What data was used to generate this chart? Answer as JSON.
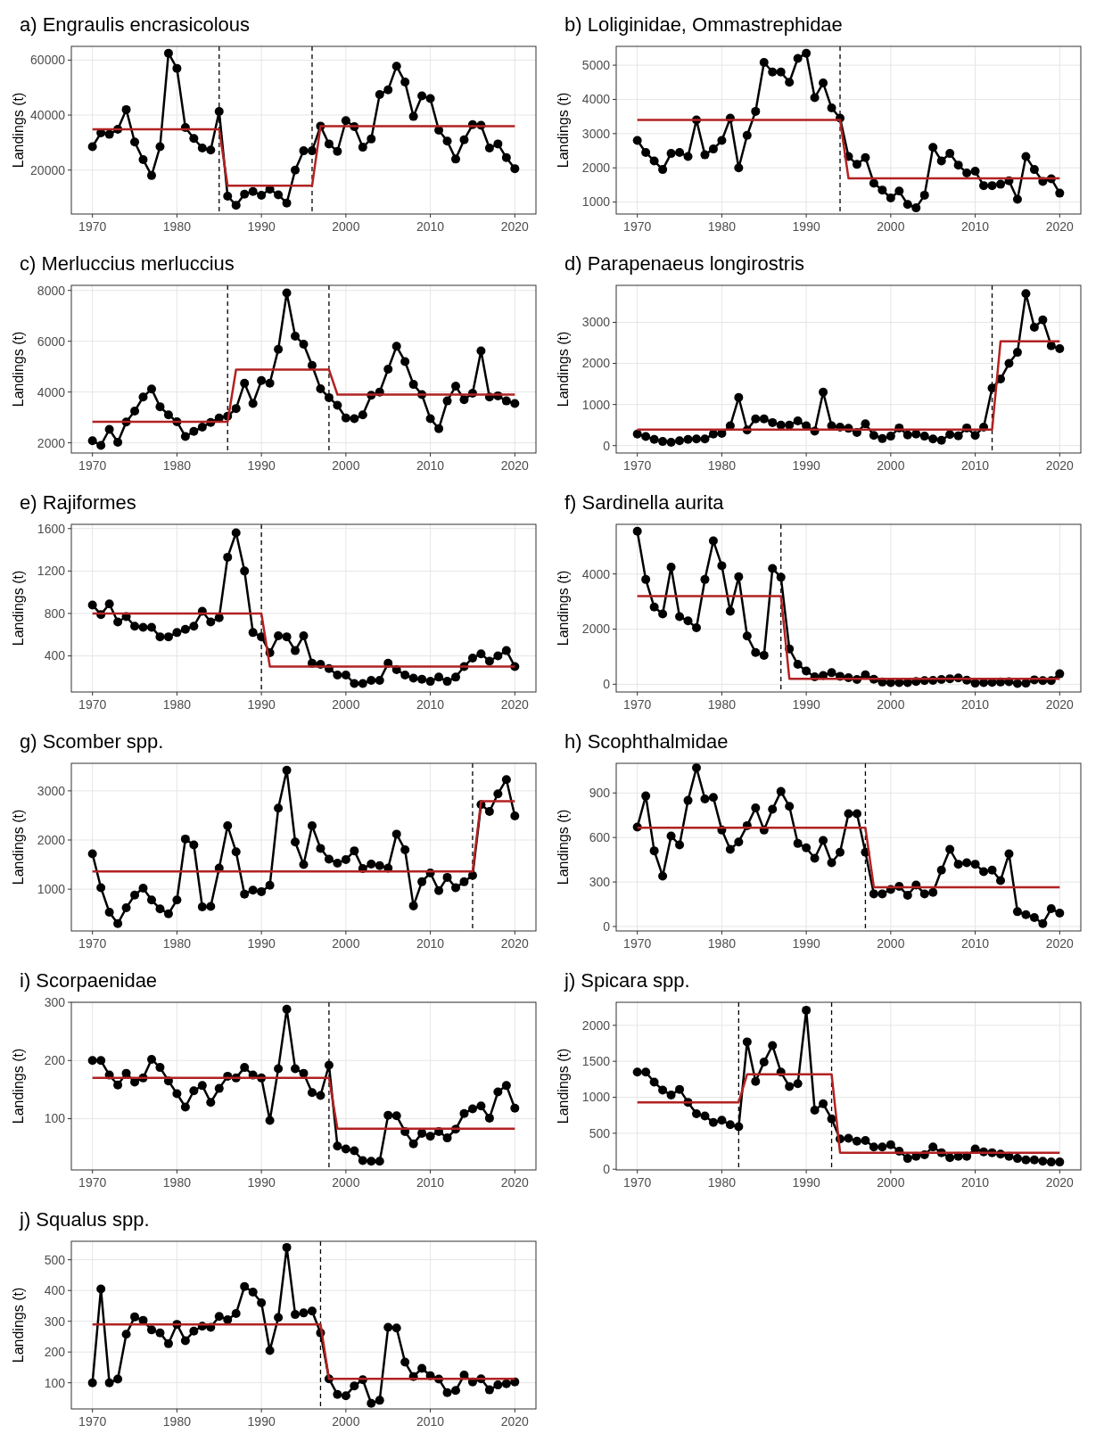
{
  "chart_data": [
    {
      "type": "line",
      "title": "a) Engraulis encrasicolous",
      "ylabel": "Landings (t)",
      "x": [
        1970,
        1971,
        1972,
        1973,
        1974,
        1975,
        1976,
        1977,
        1978,
        1979,
        1980,
        1981,
        1982,
        1983,
        1984,
        1985,
        1986,
        1987,
        1988,
        1989,
        1990,
        1991,
        1992,
        1993,
        1994,
        1995,
        1996,
        1997,
        1998,
        1999,
        2000,
        2001,
        2002,
        2003,
        2004,
        2005,
        2006,
        2007,
        2008,
        2009,
        2010,
        2011,
        2012,
        2013,
        2014,
        2015,
        2016,
        2017,
        2018,
        2019,
        2020
      ],
      "xlim": [
        1967.5,
        2022.5
      ],
      "xticks": [
        1970,
        1980,
        1990,
        2000,
        2010,
        2020
      ],
      "ylim": [
        4000,
        65000
      ],
      "yticks": [
        20000,
        40000,
        60000
      ],
      "grid": true,
      "marker": "circle",
      "series": [
        {
          "color": "#000000",
          "values": [
            28500,
            33500,
            33000,
            34800,
            42000,
            30200,
            23800,
            18000,
            28500,
            62500,
            57000,
            35500,
            31500,
            28000,
            27300,
            41300,
            10500,
            7200,
            11200,
            12200,
            10800,
            13000,
            11000,
            8000,
            20000,
            27000,
            27000,
            36000,
            29500,
            26800,
            38000,
            35800,
            28300,
            31300,
            47500,
            49200,
            57800,
            52000,
            39500,
            47000,
            46000,
            34500,
            30500,
            24000,
            31000,
            36500,
            36300,
            28000,
            29500,
            24500,
            20500
          ]
        },
        {
          "type": "line",
          "marker": "none",
          "color": "#b22222",
          "x": [
            1970,
            1985,
            1986,
            1996,
            1997,
            2020
          ],
          "values": [
            34800,
            34800,
            14300,
            14300,
            36000,
            36000
          ]
        }
      ],
      "ref_lines": [
        {
          "axis": "x",
          "value": 1985,
          "color": "#000000",
          "line_style": "dashed"
        },
        {
          "axis": "x",
          "value": 1996,
          "color": "#000000",
          "line_style": "dashed"
        }
      ]
    },
    {
      "type": "line",
      "title": "b) Loliginidae, Ommastrephidae",
      "x": [
        1970,
        1971,
        1972,
        1973,
        1974,
        1975,
        1976,
        1977,
        1978,
        1979,
        1980,
        1981,
        1982,
        1983,
        1984,
        1985,
        1986,
        1987,
        1988,
        1989,
        1990,
        1991,
        1992,
        1993,
        1994,
        1995,
        1996,
        1997,
        1998,
        1999,
        2000,
        2001,
        2002,
        2003,
        2004,
        2005,
        2006,
        2007,
        2008,
        2009,
        2010,
        2011,
        2012,
        2013,
        2014,
        2015,
        2016,
        2017,
        2018,
        2019,
        2020
      ],
      "ylabel": "Landings (t)",
      "xlim": [
        1967.5,
        2022.5
      ],
      "xticks": [
        1970,
        1980,
        1990,
        2000,
        2010,
        2020
      ],
      "ylim": [
        650,
        5550
      ],
      "yticks": [
        1000,
        2000,
        3000,
        4000,
        5000
      ],
      "grid": true,
      "marker": "circle",
      "series": [
        {
          "color": "#000000",
          "values": [
            2800,
            2450,
            2200,
            1950,
            2420,
            2450,
            2330,
            3400,
            2380,
            2550,
            2800,
            3450,
            2000,
            2950,
            3650,
            5080,
            4800,
            4800,
            4500,
            5200,
            5350,
            4050,
            4480,
            3750,
            3450,
            2330,
            2100,
            2300,
            1550,
            1350,
            1120,
            1320,
            930,
            830,
            1200,
            2600,
            2200,
            2420,
            2080,
            1850,
            1900,
            1480,
            1480,
            1520,
            1620,
            1080,
            2330,
            1950,
            1600,
            1680,
            1260
          ]
        },
        {
          "type": "line",
          "marker": "none",
          "color": "#b22222",
          "x": [
            1970,
            1994,
            1995,
            2020
          ],
          "values": [
            3400,
            3400,
            1690,
            1690
          ]
        }
      ],
      "ref_lines": [
        {
          "axis": "x",
          "value": 1994,
          "color": "#000000",
          "line_style": "dashed"
        }
      ]
    },
    {
      "type": "line",
      "title": "c) Merluccius merluccius",
      "x": [
        1970,
        1971,
        1972,
        1973,
        1974,
        1975,
        1976,
        1977,
        1978,
        1979,
        1980,
        1981,
        1982,
        1983,
        1984,
        1985,
        1986,
        1987,
        1988,
        1989,
        1990,
        1991,
        1992,
        1993,
        1994,
        1995,
        1996,
        1997,
        1998,
        1999,
        2000,
        2001,
        2002,
        2003,
        2004,
        2005,
        2006,
        2007,
        2008,
        2009,
        2010,
        2011,
        2012,
        2013,
        2014,
        2015,
        2016,
        2017,
        2018,
        2019,
        2020
      ],
      "ylabel": "Landings (t)",
      "xlim": [
        1967.5,
        2022.5
      ],
      "xticks": [
        1970,
        1980,
        1990,
        2000,
        2010,
        2020
      ],
      "ylim": [
        1600,
        8200
      ],
      "yticks": [
        2000,
        4000,
        6000,
        8000
      ],
      "grid": true,
      "marker": "circle",
      "series": [
        {
          "color": "#000000",
          "values": [
            2080,
            1900,
            2530,
            2020,
            2820,
            3250,
            3800,
            4120,
            3420,
            3100,
            2830,
            2250,
            2450,
            2620,
            2800,
            2980,
            3050,
            3350,
            4350,
            3550,
            4450,
            4350,
            5680,
            7900,
            6200,
            5880,
            5050,
            4130,
            3780,
            3480,
            2980,
            2950,
            3100,
            3870,
            4000,
            4900,
            5800,
            5200,
            4300,
            3900,
            2950,
            2560,
            3650,
            4230,
            3700,
            3950,
            5620,
            3800,
            3850,
            3650,
            3550
          ]
        },
        {
          "type": "line",
          "marker": "none",
          "color": "#b22222",
          "x": [
            1970,
            1986,
            1987,
            1998,
            1999,
            2020
          ],
          "values": [
            2830,
            2830,
            4880,
            4880,
            3900,
            3900
          ]
        }
      ],
      "ref_lines": [
        {
          "axis": "x",
          "value": 1986,
          "color": "#000000",
          "line_style": "dashed"
        },
        {
          "axis": "x",
          "value": 1998,
          "color": "#000000",
          "line_style": "dashed"
        }
      ]
    },
    {
      "type": "line",
      "title": "d) Parapenaeus longirostris",
      "x": [
        1970,
        1971,
        1972,
        1973,
        1974,
        1975,
        1976,
        1977,
        1978,
        1979,
        1980,
        1981,
        1982,
        1983,
        1984,
        1985,
        1986,
        1987,
        1988,
        1989,
        1990,
        1991,
        1992,
        1993,
        1994,
        1995,
        1996,
        1997,
        1998,
        1999,
        2000,
        2001,
        2002,
        2003,
        2004,
        2005,
        2006,
        2007,
        2008,
        2009,
        2010,
        2011,
        2012,
        2013,
        2014,
        2015,
        2016,
        2017,
        2018,
        2019,
        2020
      ],
      "ylabel": "Landings (t)",
      "xlim": [
        1967.5,
        2022.5
      ],
      "xticks": [
        1970,
        1980,
        1990,
        2000,
        2010,
        2020
      ],
      "ylim": [
        -180,
        3900
      ],
      "yticks": [
        0,
        1000,
        2000,
        3000
      ],
      "grid": true,
      "marker": "circle",
      "series": [
        {
          "color": "#000000",
          "values": [
            280,
            220,
            150,
            100,
            80,
            120,
            150,
            160,
            160,
            280,
            300,
            480,
            1170,
            380,
            650,
            650,
            560,
            500,
            500,
            600,
            480,
            350,
            1300,
            480,
            450,
            420,
            320,
            530,
            250,
            170,
            230,
            430,
            260,
            280,
            230,
            160,
            130,
            270,
            240,
            430,
            250,
            450,
            1400,
            1620,
            2000,
            2270,
            3700,
            2880,
            3060,
            2430,
            2360
          ]
        },
        {
          "type": "line",
          "marker": "none",
          "color": "#b22222",
          "x": [
            1970,
            2012,
            2013,
            2020
          ],
          "values": [
            390,
            390,
            2540,
            2540
          ]
        }
      ],
      "ref_lines": [
        {
          "axis": "x",
          "value": 2012,
          "color": "#000000",
          "line_style": "dashed"
        }
      ]
    },
    {
      "type": "line",
      "title": "e) Rajiformes",
      "x": [
        1970,
        1971,
        1972,
        1973,
        1974,
        1975,
        1976,
        1977,
        1978,
        1979,
        1980,
        1981,
        1982,
        1983,
        1984,
        1985,
        1986,
        1987,
        1988,
        1989,
        1990,
        1991,
        1992,
        1993,
        1994,
        1995,
        1996,
        1997,
        1998,
        1999,
        2000,
        2001,
        2002,
        2003,
        2004,
        2005,
        2006,
        2007,
        2008,
        2009,
        2010,
        2011,
        2012,
        2013,
        2014,
        2015,
        2016,
        2017,
        2018,
        2019,
        2020
      ],
      "ylabel": "Landings (t)",
      "xlim": [
        1967.5,
        2022.5
      ],
      "xticks": [
        1970,
        1980,
        1990,
        2000,
        2010,
        2020
      ],
      "ylim": [
        60,
        1640
      ],
      "yticks": [
        400,
        800,
        1200,
        1600
      ],
      "grid": true,
      "marker": "circle",
      "series": [
        {
          "color": "#000000",
          "values": [
            880,
            790,
            890,
            720,
            770,
            680,
            670,
            670,
            580,
            580,
            620,
            650,
            680,
            820,
            720,
            760,
            1330,
            1560,
            1200,
            620,
            580,
            430,
            590,
            580,
            450,
            590,
            330,
            320,
            280,
            220,
            220,
            140,
            140,
            170,
            170,
            330,
            270,
            220,
            190,
            180,
            160,
            200,
            160,
            200,
            300,
            380,
            420,
            350,
            400,
            450,
            300
          ]
        },
        {
          "type": "line",
          "marker": "none",
          "color": "#b22222",
          "x": [
            1970,
            1990,
            1991,
            2020
          ],
          "values": [
            800,
            800,
            300,
            300
          ]
        }
      ],
      "ref_lines": [
        {
          "axis": "x",
          "value": 1990,
          "color": "#000000",
          "line_style": "dashed"
        }
      ]
    },
    {
      "type": "line",
      "title": "f) Sardinella aurita",
      "x": [
        1970,
        1971,
        1972,
        1973,
        1974,
        1975,
        1976,
        1977,
        1978,
        1979,
        1980,
        1981,
        1982,
        1983,
        1984,
        1985,
        1986,
        1987,
        1988,
        1989,
        1990,
        1991,
        1992,
        1993,
        1994,
        1995,
        1996,
        1997,
        1998,
        1999,
        2000,
        2001,
        2002,
        2003,
        2004,
        2005,
        2006,
        2007,
        2008,
        2009,
        2010,
        2011,
        2012,
        2013,
        2014,
        2015,
        2016,
        2017,
        2018,
        2019,
        2020
      ],
      "ylabel": "Landings (t)",
      "xlim": [
        1967.5,
        2022.5
      ],
      "xticks": [
        1970,
        1980,
        1990,
        2000,
        2010,
        2020
      ],
      "ylim": [
        -280,
        5800
      ],
      "yticks": [
        0,
        2000,
        4000
      ],
      "grid": true,
      "marker": "circle",
      "series": [
        {
          "color": "#000000",
          "values": [
            5550,
            3800,
            2800,
            2550,
            4250,
            2450,
            2300,
            2050,
            3800,
            5200,
            4300,
            2650,
            3900,
            1750,
            1150,
            1050,
            4200,
            3880,
            1280,
            720,
            480,
            270,
            320,
            420,
            290,
            240,
            170,
            340,
            180,
            80,
            60,
            60,
            60,
            100,
            130,
            140,
            170,
            200,
            230,
            150,
            40,
            60,
            70,
            80,
            90,
            30,
            40,
            160,
            130,
            130,
            380
          ]
        },
        {
          "type": "line",
          "marker": "none",
          "color": "#b22222",
          "x": [
            1970,
            1987,
            1988,
            2020
          ],
          "values": [
            3200,
            3200,
            200,
            200
          ]
        }
      ],
      "ref_lines": [
        {
          "axis": "x",
          "value": 1987,
          "color": "#000000",
          "line_style": "dashed"
        }
      ]
    },
    {
      "type": "line",
      "title": "g) Scomber spp.",
      "x": [
        1970,
        1971,
        1972,
        1973,
        1974,
        1975,
        1976,
        1977,
        1978,
        1979,
        1980,
        1981,
        1982,
        1983,
        1984,
        1985,
        1986,
        1987,
        1988,
        1989,
        1990,
        1991,
        1992,
        1993,
        1994,
        1995,
        1996,
        1997,
        1998,
        1999,
        2000,
        2001,
        2002,
        2003,
        2004,
        2005,
        2006,
        2007,
        2008,
        2009,
        2010,
        2011,
        2012,
        2013,
        2014,
        2015,
        2016,
        2017,
        2018,
        2019,
        2020
      ],
      "ylabel": "Landings (t)",
      "xlim": [
        1967.5,
        2022.5
      ],
      "xticks": [
        1970,
        1980,
        1990,
        2000,
        2010,
        2020
      ],
      "ylim": [
        150,
        3560
      ],
      "yticks": [
        1000,
        2000,
        3000
      ],
      "grid": true,
      "marker": "circle",
      "series": [
        {
          "color": "#000000",
          "values": [
            1720,
            1030,
            530,
            300,
            620,
            880,
            1020,
            780,
            600,
            500,
            780,
            2020,
            1900,
            640,
            650,
            1430,
            2290,
            1760,
            900,
            980,
            950,
            1080,
            2650,
            3420,
            1960,
            1500,
            2290,
            1830,
            1610,
            1530,
            1600,
            1780,
            1420,
            1510,
            1480,
            1430,
            2120,
            1800,
            660,
            1150,
            1330,
            970,
            1240,
            1030,
            1150,
            1280,
            2720,
            2580,
            2940,
            3230,
            2490
          ]
        },
        {
          "type": "line",
          "marker": "none",
          "color": "#b22222",
          "x": [
            1970,
            2015,
            2016,
            2020
          ],
          "values": [
            1360,
            1360,
            2790,
            2790
          ]
        }
      ],
      "ref_lines": [
        {
          "axis": "x",
          "value": 2015,
          "color": "#000000",
          "line_style": "dashed"
        }
      ]
    },
    {
      "type": "line",
      "title": "h) Scophthalmidae",
      "x": [
        1970,
        1971,
        1972,
        1973,
        1974,
        1975,
        1976,
        1977,
        1978,
        1979,
        1980,
        1981,
        1982,
        1983,
        1984,
        1985,
        1986,
        1987,
        1988,
        1989,
        1990,
        1991,
        1992,
        1993,
        1994,
        1995,
        1996,
        1997,
        1998,
        1999,
        2000,
        2001,
        2002,
        2003,
        2004,
        2005,
        2006,
        2007,
        2008,
        2009,
        2010,
        2011,
        2012,
        2013,
        2014,
        2015,
        2016,
        2017,
        2018,
        2019,
        2020
      ],
      "ylabel": "Landings (t)",
      "xlim": [
        1967.5,
        2022.5
      ],
      "xticks": [
        1970,
        1980,
        1990,
        2000,
        2010,
        2020
      ],
      "ylim": [
        -30,
        1100
      ],
      "yticks": [
        0,
        300,
        600,
        900
      ],
      "grid": true,
      "marker": "circle",
      "series": [
        {
          "color": "#000000",
          "values": [
            670,
            880,
            510,
            340,
            610,
            550,
            850,
            1070,
            860,
            870,
            650,
            520,
            570,
            680,
            800,
            650,
            790,
            910,
            810,
            560,
            530,
            460,
            580,
            430,
            500,
            760,
            760,
            500,
            220,
            220,
            250,
            270,
            210,
            280,
            220,
            230,
            380,
            520,
            420,
            430,
            420,
            370,
            380,
            310,
            490,
            100,
            80,
            60,
            20,
            120,
            90
          ]
        },
        {
          "type": "line",
          "marker": "none",
          "color": "#b22222",
          "x": [
            1970,
            1997,
            1998,
            2020
          ],
          "values": [
            665,
            665,
            265,
            265
          ]
        }
      ],
      "ref_lines": [
        {
          "axis": "x",
          "value": 1997,
          "color": "#000000",
          "line_style": "dashed"
        }
      ]
    },
    {
      "type": "line",
      "title": "i) Scorpaenidae",
      "x": [
        1970,
        1971,
        1972,
        1973,
        1974,
        1975,
        1976,
        1977,
        1978,
        1979,
        1980,
        1981,
        1982,
        1983,
        1984,
        1985,
        1986,
        1987,
        1988,
        1989,
        1990,
        1991,
        1992,
        1993,
        1994,
        1995,
        1996,
        1997,
        1998,
        1999,
        2000,
        2001,
        2002,
        2003,
        2004,
        2005,
        2006,
        2007,
        2008,
        2009,
        2010,
        2011,
        2012,
        2013,
        2014,
        2015,
        2016,
        2017,
        2018,
        2019,
        2020
      ],
      "ylabel": "Landings (t)",
      "xlim": [
        1967.5,
        2022.5
      ],
      "xticks": [
        1970,
        1980,
        1990,
        2000,
        2010,
        2020
      ],
      "ylim": [
        12,
        300
      ],
      "yticks": [
        100,
        200,
        300
      ],
      "grid": true,
      "marker": "circle",
      "series": [
        {
          "color": "#000000",
          "values": [
            200,
            200,
            175,
            158,
            178,
            163,
            170,
            202,
            188,
            165,
            143,
            120,
            148,
            157,
            128,
            152,
            173,
            170,
            188,
            175,
            170,
            97,
            186,
            288,
            186,
            178,
            145,
            140,
            192,
            53,
            48,
            45,
            28,
            27,
            27,
            106,
            105,
            78,
            57,
            75,
            70,
            78,
            67,
            82,
            109,
            117,
            122,
            101,
            146,
            157,
            118
          ]
        },
        {
          "type": "line",
          "marker": "none",
          "color": "#b22222",
          "x": [
            1970,
            1998,
            1999,
            2020
          ],
          "values": [
            170,
            170,
            83,
            83
          ]
        }
      ],
      "ref_lines": [
        {
          "axis": "x",
          "value": 1998,
          "color": "#000000",
          "line_style": "dashed"
        }
      ]
    },
    {
      "type": "line",
      "title": "j) Spicara spp.",
      "x": [
        1970,
        1971,
        1972,
        1973,
        1974,
        1975,
        1976,
        1977,
        1978,
        1979,
        1980,
        1981,
        1982,
        1983,
        1984,
        1985,
        1986,
        1987,
        1988,
        1989,
        1990,
        1991,
        1992,
        1993,
        1994,
        1995,
        1996,
        1997,
        1998,
        1999,
        2000,
        2001,
        2002,
        2003,
        2004,
        2005,
        2006,
        2007,
        2008,
        2009,
        2010,
        2011,
        2012,
        2013,
        2014,
        2015,
        2016,
        2017,
        2018,
        2019,
        2020
      ],
      "ylabel": "Landings (t)",
      "xlim": [
        1967.5,
        2022.5
      ],
      "xticks": [
        1970,
        1980,
        1990,
        2000,
        2010,
        2020
      ],
      "ylim": [
        -10,
        2320
      ],
      "yticks": [
        0,
        500,
        1000,
        1500,
        2000
      ],
      "grid": true,
      "marker": "circle",
      "series": [
        {
          "color": "#000000",
          "values": [
            1350,
            1350,
            1210,
            1100,
            1030,
            1110,
            930,
            770,
            740,
            650,
            680,
            620,
            590,
            1770,
            1220,
            1490,
            1720,
            1350,
            1150,
            1190,
            2210,
            820,
            910,
            700,
            420,
            430,
            390,
            400,
            310,
            310,
            340,
            250,
            150,
            180,
            200,
            310,
            230,
            160,
            180,
            180,
            280,
            240,
            230,
            210,
            180,
            150,
            130,
            130,
            110,
            100,
            100
          ]
        },
        {
          "type": "line",
          "marker": "none",
          "color": "#b22222",
          "x": [
            1970,
            1982,
            1983,
            1993,
            1994,
            2020
          ],
          "values": [
            930,
            930,
            1320,
            1320,
            230,
            230
          ]
        }
      ],
      "ref_lines": [
        {
          "axis": "x",
          "value": 1982,
          "color": "#000000",
          "line_style": "dashed"
        },
        {
          "axis": "x",
          "value": 1993,
          "color": "#000000",
          "line_style": "dashed"
        }
      ]
    },
    {
      "type": "line",
      "title": "j) Squalus spp.",
      "x": [
        1970,
        1971,
        1972,
        1973,
        1974,
        1975,
        1976,
        1977,
        1978,
        1979,
        1980,
        1981,
        1982,
        1983,
        1984,
        1985,
        1986,
        1987,
        1988,
        1989,
        1990,
        1991,
        1992,
        1993,
        1994,
        1995,
        1996,
        1997,
        1998,
        1999,
        2000,
        2001,
        2002,
        2003,
        2004,
        2005,
        2006,
        2007,
        2008,
        2009,
        2010,
        2011,
        2012,
        2013,
        2014,
        2015,
        2016,
        2017,
        2018,
        2019,
        2020
      ],
      "ylabel": "Landings (t)",
      "xlim": [
        1967.5,
        2022.5
      ],
      "xticks": [
        1970,
        1980,
        1990,
        2000,
        2010,
        2020
      ],
      "ylim": [
        15,
        560
      ],
      "yticks": [
        100,
        200,
        300,
        400,
        500
      ],
      "grid": true,
      "marker": "circle",
      "series": [
        {
          "color": "#000000",
          "values": [
            100,
            405,
            100,
            112,
            258,
            314,
            303,
            272,
            262,
            227,
            290,
            237,
            268,
            284,
            280,
            316,
            305,
            325,
            413,
            395,
            360,
            205,
            312,
            540,
            322,
            327,
            333,
            262,
            113,
            62,
            58,
            90,
            110,
            33,
            43,
            280,
            278,
            167,
            120,
            147,
            123,
            112,
            68,
            75,
            125,
            103,
            113,
            77,
            93,
            97,
            103
          ]
        },
        {
          "type": "line",
          "marker": "none",
          "color": "#b22222",
          "x": [
            1970,
            1997,
            1998,
            2020
          ],
          "values": [
            290,
            290,
            113,
            113
          ]
        }
      ],
      "ref_lines": [
        {
          "axis": "x",
          "value": 1997,
          "color": "#000000",
          "line_style": "dashed"
        }
      ]
    }
  ]
}
